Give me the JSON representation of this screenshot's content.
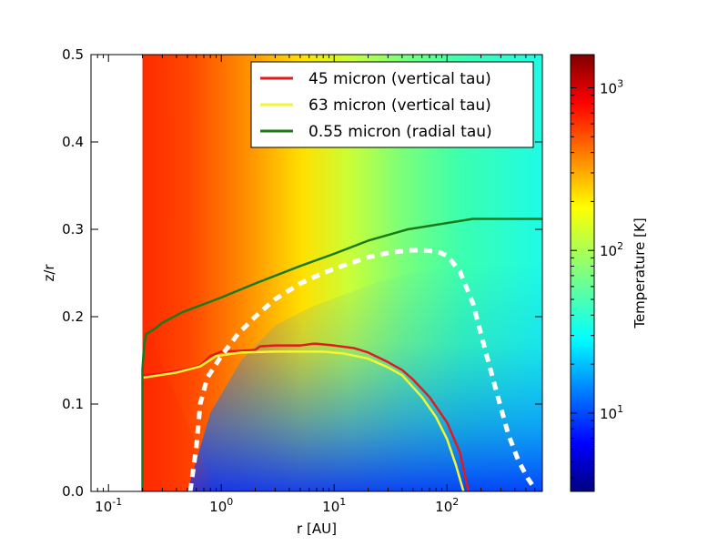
{
  "chart_data": [
    {
      "type": "heatmap-with-lines",
      "title": "",
      "xlabel": "r [AU]",
      "ylabel": "z/r",
      "xscale": "log",
      "xlim": [
        0.07,
        700
      ],
      "ylim": [
        0.0,
        0.5
      ],
      "x_ticks": [
        {
          "base": "10",
          "exp": "-1",
          "value": 0.1
        },
        {
          "base": "10",
          "exp": "0",
          "value": 1
        },
        {
          "base": "10",
          "exp": "1",
          "value": 10
        },
        {
          "base": "10",
          "exp": "2",
          "value": 100
        }
      ],
      "y_ticks": [
        {
          "label": "0.0",
          "value": 0.0
        },
        {
          "label": "0.1",
          "value": 0.1
        },
        {
          "label": "0.2",
          "value": 0.2
        },
        {
          "label": "0.3",
          "value": 0.3
        },
        {
          "label": "0.4",
          "value": 0.4
        },
        {
          "label": "0.5",
          "value": 0.5
        }
      ],
      "disk_inner_edge_au": 0.2,
      "legend": {
        "placement": "top-right",
        "entries": [
          {
            "label": "45 micron (vertical tau)",
            "color": "#e31a1c"
          },
          {
            "label": "63 micron (vertical tau)",
            "color": "#f5f530"
          },
          {
            "label": "0.55 micron (radial tau)",
            "color": "#1a7a1a"
          }
        ]
      },
      "series": [
        {
          "name": "45 micron (vertical tau)",
          "color": "#e31a1c",
          "style": "solid",
          "x": [
            0.2,
            0.3,
            0.5,
            0.65,
            0.8,
            1.0,
            1.5,
            2.0,
            2.2,
            3,
            5,
            6.5,
            7,
            10,
            15,
            20,
            30,
            40,
            50,
            70,
            100,
            130,
            155
          ],
          "y": [
            0.133,
            0.135,
            0.14,
            0.144,
            0.155,
            0.16,
            0.161,
            0.162,
            0.166,
            0.167,
            0.167,
            0.169,
            0.169,
            0.167,
            0.164,
            0.159,
            0.148,
            0.139,
            0.128,
            0.108,
            0.079,
            0.045,
            0.0
          ]
        },
        {
          "name": "63 micron (vertical tau)",
          "color": "#f5f530",
          "style": "solid",
          "x": [
            0.2,
            0.4,
            0.65,
            0.9,
            1.5,
            3,
            5,
            8,
            12,
            20,
            30,
            40,
            60,
            80,
            100,
            120,
            140
          ],
          "y": [
            0.13,
            0.136,
            0.143,
            0.155,
            0.159,
            0.16,
            0.16,
            0.16,
            0.158,
            0.152,
            0.142,
            0.133,
            0.108,
            0.085,
            0.06,
            0.03,
            0.0
          ]
        },
        {
          "name": "0.55 micron (radial tau)",
          "color": "#1a7a1a",
          "style": "solid",
          "x": [
            0.2,
            0.2,
            0.2,
            0.205,
            0.21,
            0.215,
            0.25,
            0.3,
            0.45,
            1.0,
            2.0,
            5.0,
            10,
            20,
            45,
            170,
            700
          ],
          "y": [
            0.0,
            0.1,
            0.14,
            0.16,
            0.172,
            0.18,
            0.185,
            0.193,
            0.205,
            0.222,
            0.238,
            0.258,
            0.272,
            0.287,
            0.3,
            0.312,
            0.312
          ]
        },
        {
          "name": "boundary",
          "color": "#ffffff",
          "style": "dashed",
          "x": [
            0.53,
            0.6,
            0.65,
            0.75,
            1.0,
            1.4,
            2.0,
            3.0,
            5.0,
            8.0,
            13,
            20,
            30,
            45,
            60,
            80,
            100,
            130,
            170,
            220,
            280,
            350,
            430,
            520,
            600
          ],
          "y": [
            0.0,
            0.05,
            0.1,
            0.13,
            0.155,
            0.18,
            0.2,
            0.22,
            0.238,
            0.25,
            0.26,
            0.268,
            0.273,
            0.276,
            0.276,
            0.275,
            0.27,
            0.252,
            0.215,
            0.16,
            0.11,
            0.065,
            0.035,
            0.015,
            0.003
          ]
        }
      ]
    },
    {
      "type": "colorbar",
      "label": "Temperature [K]",
      "scale": "log",
      "range": [
        3.3,
        1600
      ],
      "ticks": [
        {
          "base": "10",
          "exp": "1",
          "value": 10
        },
        {
          "base": "10",
          "exp": "2",
          "value": 100
        },
        {
          "base": "10",
          "exp": "3",
          "value": 1000
        }
      ],
      "colormap": "jet"
    }
  ]
}
